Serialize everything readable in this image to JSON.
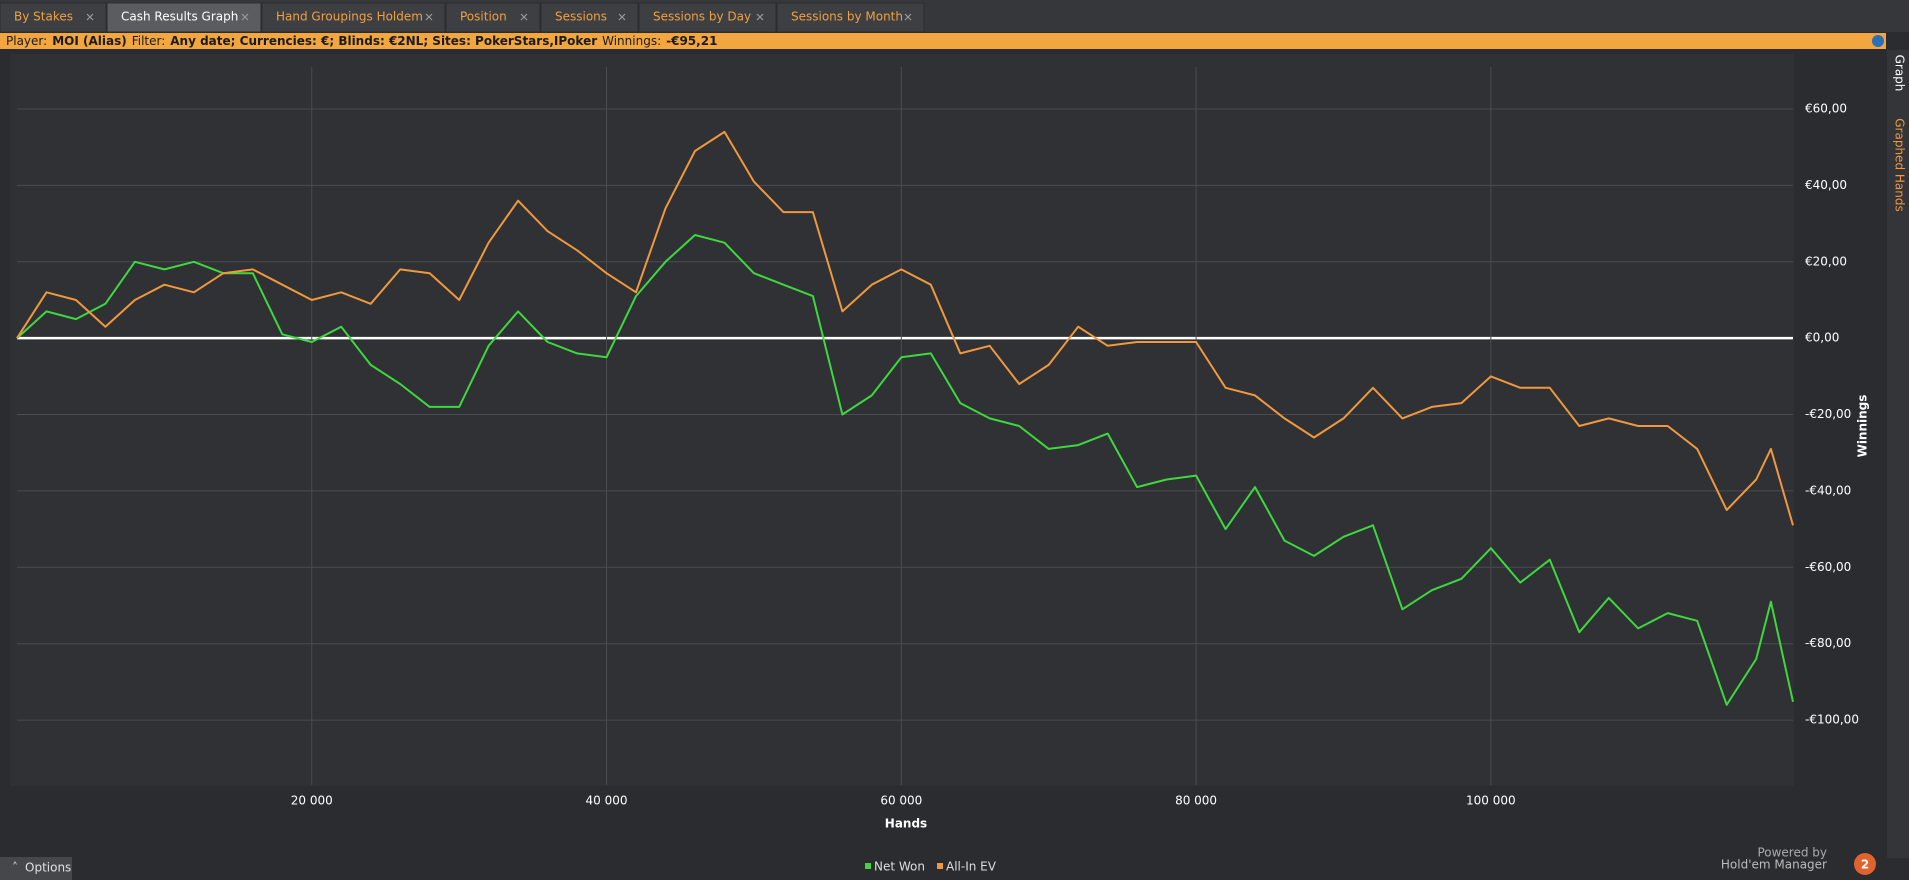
{
  "tabs": [
    {
      "label": "By Stakes",
      "active": false
    },
    {
      "label": "Cash Results Graph",
      "active": true
    },
    {
      "label": "Hand Groupings Holdem",
      "active": false
    },
    {
      "label": "Position",
      "active": false
    },
    {
      "label": "Sessions",
      "active": false
    },
    {
      "label": "Sessions by Day",
      "active": false
    },
    {
      "label": "Sessions by Month",
      "active": false
    }
  ],
  "filter_bar": {
    "player_label": "Player:",
    "player": "MOI (Alias)",
    "filter_label": "Filter:",
    "filter": "Any date; Currencies: €; Blinds: €2NL; Sites: PokerStars,IPoker",
    "winnings_label": "Winnings:",
    "winnings": "-€95,21"
  },
  "sidebar": {
    "graph": "Graph",
    "graphed_hands": "Graphed Hands"
  },
  "footer": {
    "options": "Options",
    "powered_by": "Powered by",
    "brand": "Hold'em Manager",
    "brand_version": "2"
  },
  "chart_data": {
    "type": "line",
    "xlabel": "Hands",
    "ylabel": "Winnings",
    "x": [
      0,
      2000,
      4000,
      6000,
      8000,
      10000,
      12000,
      14000,
      16000,
      18000,
      20000,
      22000,
      24000,
      26000,
      28000,
      30000,
      32000,
      34000,
      36000,
      38000,
      40000,
      42000,
      44000,
      46000,
      48000,
      50000,
      52000,
      54000,
      56000,
      58000,
      60000,
      62000,
      64000,
      66000,
      68000,
      70000,
      72000,
      74000,
      76000,
      78000,
      80000,
      82000,
      84000,
      86000,
      88000,
      90000,
      92000,
      94000,
      96000,
      98000,
      100000,
      102000,
      104000,
      106000,
      108000,
      110000,
      112000,
      114000,
      116000,
      118000,
      119000,
      120500
    ],
    "series": [
      {
        "name": "Net Won",
        "color": "#3ed83e",
        "values": [
          0,
          7,
          5,
          9,
          20,
          18,
          20,
          17,
          17,
          1,
          -1,
          3,
          -7,
          -12,
          -18,
          -18,
          -2,
          7,
          -1,
          -4,
          -5,
          11,
          20,
          27,
          25,
          17,
          14,
          11,
          -20,
          -15,
          -5,
          -4,
          -17,
          -21,
          -23,
          -29,
          -28,
          -25,
          -39,
          -37,
          -36,
          -50,
          -39,
          -53,
          -57,
          -52,
          -49,
          -71,
          -66,
          -63,
          -55,
          -64,
          -58,
          -77,
          -68,
          -76,
          -72,
          -74,
          -96,
          -84,
          -69,
          -95.21
        ]
      },
      {
        "name": "All-In EV",
        "color": "#f0983e",
        "values": [
          0,
          12,
          10,
          3,
          10,
          14,
          12,
          17,
          18,
          14,
          10,
          12,
          9,
          18,
          17,
          10,
          25,
          36,
          28,
          23,
          17,
          12,
          34,
          49,
          54,
          41,
          33,
          33,
          7,
          14,
          18,
          14,
          -4,
          -2,
          -12,
          -7,
          3,
          -2,
          -1,
          -1,
          -1,
          -13,
          -15,
          -21,
          -26,
          -21,
          -13,
          -21,
          -18,
          -17,
          -10,
          -13,
          -13,
          -23,
          -21,
          -23,
          -23,
          -29,
          -45,
          -37,
          -29,
          -49
        ]
      }
    ],
    "xlim": [
      0,
      120500
    ],
    "xticks": [
      {
        "value": 20000,
        "label": "20 000"
      },
      {
        "value": 40000,
        "label": "40 000"
      },
      {
        "value": 60000,
        "label": "60 000"
      },
      {
        "value": 80000,
        "label": "80 000"
      },
      {
        "value": 100000,
        "label": "100 000"
      }
    ],
    "ylim": [
      -117,
      71
    ],
    "yticks": [
      {
        "value": 60,
        "label": "€60,00"
      },
      {
        "value": 40,
        "label": "€40,00"
      },
      {
        "value": 20,
        "label": "€20,00"
      },
      {
        "value": 0,
        "label": "€0,00"
      },
      {
        "value": -20,
        "label": "-€20,00"
      },
      {
        "value": -40,
        "label": "-€40,00"
      },
      {
        "value": -60,
        "label": "-€60,00"
      },
      {
        "value": -80,
        "label": "-€80,00"
      },
      {
        "value": -100,
        "label": "-€100,00"
      }
    ],
    "grid": true,
    "legend": "bottom"
  }
}
